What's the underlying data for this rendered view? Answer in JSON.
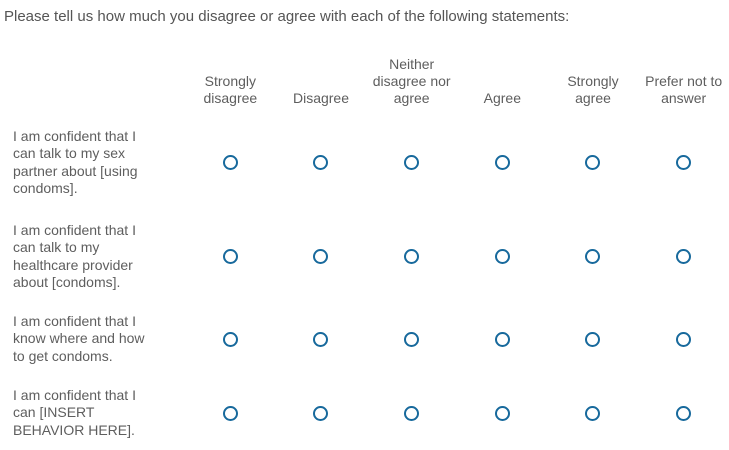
{
  "question": {
    "title": "Please tell us how much you disagree or agree with each of the following statements:"
  },
  "matrix": {
    "columns": [
      "Strongly disagree",
      "Disagree",
      "Neither disagree nor agree",
      "Agree",
      "Strongly agree",
      "Prefer not to answer"
    ],
    "rows": [
      "I am confident that I can talk to my sex partner about [using condoms].",
      "I am confident that I can talk to my healthcare provider about [condoms].",
      "I am confident that I know where and how to get condoms.",
      "I am confident that I can [INSERT BEHAVIOR HERE]."
    ],
    "radio_state": "unselected"
  },
  "colors": {
    "radio_border": "#17699c",
    "text": "#5e5e5e",
    "background": "#ffffff"
  }
}
